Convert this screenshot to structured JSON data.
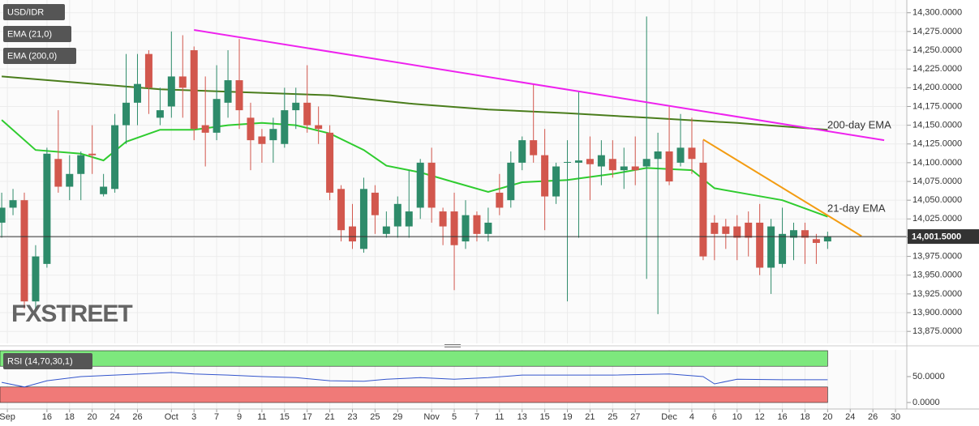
{
  "chart_data": [
    {
      "type": "candlestick",
      "xlim": [
        -0.15,
        80
      ],
      "ylim": [
        13859,
        14317
      ],
      "grid": true,
      "xticks": [
        {
          "value": 0.5,
          "label": "Sep"
        },
        {
          "value": 4,
          "label": "16"
        },
        {
          "value": 6,
          "label": "18"
        },
        {
          "value": 8,
          "label": "20"
        },
        {
          "value": 10,
          "label": "24"
        },
        {
          "value": 12,
          "label": "26"
        },
        {
          "value": 15,
          "label": "Oct"
        },
        {
          "value": 17,
          "label": "3"
        },
        {
          "value": 19,
          "label": "7"
        },
        {
          "value": 21,
          "label": "9"
        },
        {
          "value": 23,
          "label": "11"
        },
        {
          "value": 25,
          "label": "15"
        },
        {
          "value": 27,
          "label": "17"
        },
        {
          "value": 29,
          "label": "21"
        },
        {
          "value": 31,
          "label": "23"
        },
        {
          "value": 33,
          "label": "25"
        },
        {
          "value": 35,
          "label": "29"
        },
        {
          "value": 38,
          "label": "Nov"
        },
        {
          "value": 40,
          "label": "5"
        },
        {
          "value": 42,
          "label": "7"
        },
        {
          "value": 44,
          "label": "11"
        },
        {
          "value": 46,
          "label": "13"
        },
        {
          "value": 48,
          "label": "15"
        },
        {
          "value": 50,
          "label": "19"
        },
        {
          "value": 52,
          "label": "21"
        },
        {
          "value": 54,
          "label": "25"
        },
        {
          "value": 56,
          "label": "27"
        },
        {
          "value": 59,
          "label": "Dec"
        },
        {
          "value": 61,
          "label": "4"
        },
        {
          "value": 63,
          "label": "6"
        },
        {
          "value": 65,
          "label": "10"
        },
        {
          "value": 67,
          "label": "12"
        },
        {
          "value": 69,
          "label": "16"
        },
        {
          "value": 71,
          "label": "18"
        },
        {
          "value": 73,
          "label": "20"
        },
        {
          "value": 75,
          "label": "24"
        },
        {
          "value": 77,
          "label": "26"
        },
        {
          "value": 79,
          "label": "30"
        }
      ],
      "yticks": [
        {
          "value": 14300,
          "label": "14,300.0000"
        },
        {
          "value": 14275,
          "label": "14,275.0000"
        },
        {
          "value": 14250,
          "label": "14,250.0000"
        },
        {
          "value": 14225,
          "label": "14,225.0000"
        },
        {
          "value": 14200,
          "label": "14,200.0000"
        },
        {
          "value": 14175,
          "label": "14,175.0000"
        },
        {
          "value": 14150,
          "label": "14,150.0000"
        },
        {
          "value": 14125,
          "label": "14,125.0000"
        },
        {
          "value": 14100,
          "label": "14,100.0000"
        },
        {
          "value": 14075,
          "label": "14,075.0000"
        },
        {
          "value": 14050,
          "label": "14,050.0000"
        },
        {
          "value": 14025,
          "label": "14,025.0000"
        },
        {
          "value": 14000,
          "label": "14,000.0000"
        },
        {
          "value": 13975,
          "label": "13,975.0000"
        },
        {
          "value": 13950,
          "label": "13,950.0000"
        },
        {
          "value": 13925,
          "label": "13,925.0000"
        },
        {
          "value": 13900,
          "label": "13,900.0000"
        },
        {
          "value": 13875,
          "label": "13,875.0000"
        }
      ],
      "series": [
        {
          "name": "USD/IDR",
          "up_color": "#2e8b6a",
          "down_color": "#d2574d",
          "x": [
            0,
            1,
            2,
            3,
            4,
            5,
            6,
            7,
            8,
            9,
            10,
            11,
            12,
            13,
            14,
            15,
            16,
            17,
            18,
            19,
            20,
            21,
            22,
            23,
            24,
            25,
            26,
            27,
            28,
            29,
            30,
            31,
            32,
            33,
            34,
            35,
            36,
            37,
            38,
            39,
            40,
            41,
            42,
            43,
            44,
            45,
            46,
            47,
            48,
            49,
            50,
            51,
            52,
            53,
            54,
            55,
            56,
            57,
            58,
            59,
            60,
            61,
            62,
            63,
            64,
            65,
            66,
            67,
            68,
            69,
            70,
            71,
            72,
            73
          ],
          "open": [
            14020,
            14040,
            14050,
            13915,
            13965,
            14105,
            14068,
            14085,
            14112,
            14058,
            14065,
            14150,
            14180,
            14245,
            14160,
            14175,
            14215,
            14250,
            14150,
            14140,
            14180,
            14210,
            14160,
            14135,
            14130,
            14125,
            14170,
            14180,
            14150,
            14140,
            14065,
            14015,
            13985,
            14060,
            14005,
            14015,
            14015,
            14040,
            14100,
            14035,
            14035,
            13995,
            14030,
            14005,
            14060,
            14050,
            14100,
            14130,
            14110,
            14055,
            14100,
            14100,
            14105,
            14095,
            14105,
            14090,
            14095,
            14095,
            14105,
            14115,
            14100,
            14120,
            14100,
            14020,
            14015,
            14015,
            14020,
            14020,
            13960,
            13965,
            14000,
            14010,
            13998,
            13995
          ],
          "high": [
            14060,
            14065,
            14060,
            13990,
            14120,
            14170,
            14110,
            14115,
            14150,
            14085,
            14165,
            14245,
            14245,
            14250,
            14200,
            14275,
            14270,
            14255,
            14215,
            14230,
            14250,
            14265,
            14180,
            14145,
            14160,
            14200,
            14200,
            14230,
            14175,
            14150,
            14070,
            14045,
            14080,
            14070,
            14035,
            14055,
            14090,
            14105,
            14120,
            14040,
            14060,
            14050,
            14035,
            14040,
            14085,
            14115,
            14135,
            14205,
            14145,
            14100,
            14130,
            14195,
            14135,
            14130,
            14130,
            14120,
            14135,
            14295,
            14140,
            14175,
            14165,
            14160,
            14130,
            14030,
            14025,
            14030,
            14035,
            14045,
            14025,
            14040,
            14020,
            14020,
            14005,
            14008
          ],
          "low": [
            14000,
            14030,
            13905,
            13905,
            13960,
            14060,
            14050,
            14050,
            14085,
            14055,
            14060,
            14125,
            14150,
            14165,
            14150,
            14160,
            14160,
            14130,
            14095,
            14130,
            14160,
            14145,
            14090,
            14100,
            14100,
            14120,
            14145,
            14140,
            14125,
            14050,
            13995,
            13985,
            13980,
            14005,
            14000,
            14000,
            14000,
            14025,
            14020,
            13990,
            13930,
            13985,
            13995,
            13995,
            14030,
            14040,
            14090,
            14100,
            14010,
            14045,
            13915,
            14000,
            14050,
            14070,
            14080,
            14065,
            14070,
            13945,
            13898,
            14070,
            14095,
            14085,
            13970,
            13970,
            13985,
            13970,
            13975,
            13950,
            13925,
            13960,
            13970,
            13965,
            13965,
            13985
          ],
          "close": [
            14040,
            14050,
            13915,
            13975,
            14112,
            14068,
            14085,
            14110,
            14110,
            14068,
            14150,
            14180,
            14205,
            14200,
            14170,
            14215,
            14200,
            14145,
            14140,
            14185,
            14210,
            14170,
            14130,
            14125,
            14145,
            14170,
            14180,
            14150,
            14145,
            14060,
            14010,
            13995,
            14065,
            14030,
            14015,
            14045,
            14035,
            14100,
            14040,
            14015,
            13990,
            14030,
            14005,
            14020,
            14040,
            14100,
            14130,
            14110,
            14055,
            14095,
            14101,
            14103,
            14098,
            14110,
            14090,
            14095,
            14090,
            14105,
            14115,
            14075,
            14120,
            14105,
            13975,
            14005,
            14005,
            14000,
            14000,
            13960,
            14015,
            14005,
            14010,
            14000,
            13993,
            14001.5
          ]
        }
      ],
      "lines": [
        {
          "name": "EMA (21,0)",
          "color": "#2fcc2f",
          "x": [
            0,
            3,
            7,
            9,
            11,
            14,
            17,
            20,
            23,
            26,
            29,
            32,
            34,
            37,
            40,
            43,
            46,
            50,
            54,
            57,
            61,
            63,
            66,
            69,
            73
          ],
          "values": [
            14157,
            14117,
            14112,
            14103,
            14128,
            14144,
            14144,
            14150,
            14153,
            14150,
            14139,
            14117,
            14096,
            14087,
            14074,
            14061,
            14074,
            14077,
            14085,
            14093,
            14090,
            14066,
            14058,
            14050,
            14028
          ]
        },
        {
          "name": "EMA (200,0)",
          "color": "#4a7d1c",
          "x": [
            0,
            14,
            29,
            36,
            43,
            50,
            57,
            65,
            73
          ],
          "values": [
            14215,
            14198,
            14190,
            14179,
            14171,
            14166,
            14160,
            14153,
            14144
          ]
        }
      ],
      "trendlines": [
        {
          "color": "#ee22ee",
          "x": [
            17,
            78
          ],
          "values": [
            14277,
            14130
          ]
        },
        {
          "color": "#f39c12",
          "x": [
            62,
            76
          ],
          "values": [
            14131,
            14002
          ]
        }
      ],
      "last": {
        "value": 14001.5,
        "label": "14,001.5000"
      },
      "annotations": [
        {
          "text": "200-day EMA",
          "color": "#3c9a2e"
        },
        {
          "text": "21-day EMA",
          "color": "#3c9a2e"
        }
      ],
      "watermark": "FXSTREET"
    },
    {
      "type": "line",
      "xlim": [
        -0.15,
        80
      ],
      "ylim": [
        -12.5,
        101.6
      ],
      "yticks": [
        {
          "value": 50,
          "label": "50.0000"
        },
        {
          "value": 0,
          "label": "0.0000"
        }
      ],
      "bands": [
        {
          "from": 70,
          "to": 100,
          "color": "#7de87d"
        },
        {
          "from": 0,
          "to": 30,
          "color": "#f07a78"
        }
      ],
      "series": [
        {
          "name": "RSI (14,70,30,1)",
          "color": "#3355cc",
          "x": [
            0,
            2,
            4,
            7,
            10,
            13,
            15,
            17,
            20,
            23,
            26,
            29,
            32,
            34,
            37,
            40,
            43,
            46,
            50,
            54,
            59,
            62,
            63,
            65,
            69,
            73
          ],
          "values": [
            39,
            30,
            42,
            50,
            53,
            56,
            58,
            55,
            53,
            50,
            48,
            42,
            41,
            45,
            48,
            45,
            48,
            53,
            53,
            53,
            55,
            50,
            36,
            45,
            44,
            44
          ]
        }
      ]
    }
  ]
}
